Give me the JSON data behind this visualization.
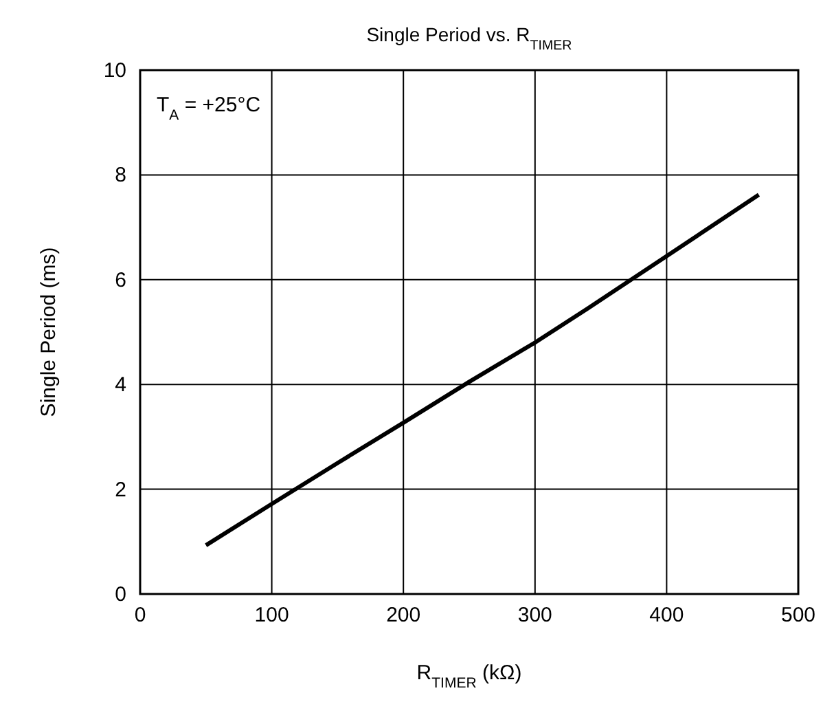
{
  "chart_data": {
    "type": "line",
    "title": "Single Period vs. R$_{TIMER}$",
    "xlabel": "R$_{TIMER}$ (kΩ)",
    "ylabel": "Single Period (ms)",
    "annotations": [
      "T$_{A}$ = +25°C"
    ],
    "x": [
      50,
      100,
      150,
      200,
      250,
      300,
      340,
      400,
      470
    ],
    "series": [
      {
        "color": "#000000",
        "values": [
          0.93,
          1.72,
          2.5,
          3.27,
          4.05,
          4.8,
          5.45,
          6.45,
          7.62
        ]
      }
    ],
    "xlim": [
      0,
      500
    ],
    "xticks": [
      0,
      100,
      200,
      300,
      400,
      500
    ],
    "ylim": [
      0,
      10
    ],
    "yticks": [
      0,
      2,
      4,
      6,
      8,
      10
    ],
    "grid": true,
    "marker": "none",
    "line_style": "solid"
  }
}
